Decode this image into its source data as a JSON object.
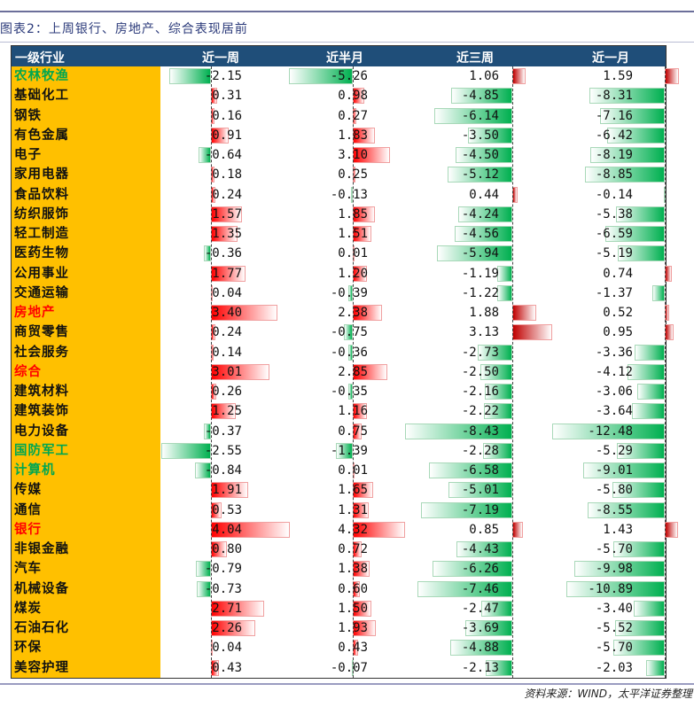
{
  "title": "图表2：上周银行、房地产、综合表现居前",
  "source": "资料来源：WIND，太平洋证券整理",
  "colors": {
    "header_bg": "#1f4e79",
    "name_bg": "#ffc000",
    "positive": "#ff0000",
    "positive_dark": "#c00000",
    "negative": "#00b050",
    "name_green": "#00a650",
    "name_red": "#ff0000"
  },
  "chart_data": {
    "type": "table",
    "columns": [
      "一级行业",
      "近一周",
      "近半月",
      "近三周",
      "近一月"
    ],
    "rows": [
      {
        "name": "农林牧渔",
        "color": "green",
        "values": [
          -2.15,
          -5.26,
          1.06,
          1.59
        ]
      },
      {
        "name": "基础化工",
        "color": "black",
        "values": [
          0.31,
          0.98,
          -4.85,
          -8.31
        ]
      },
      {
        "name": "钢铁",
        "color": "black",
        "values": [
          0.16,
          0.27,
          -6.14,
          -7.16
        ]
      },
      {
        "name": "有色金属",
        "color": "black",
        "values": [
          0.91,
          1.83,
          -3.5,
          -6.42
        ]
      },
      {
        "name": "电子",
        "color": "black",
        "values": [
          -0.64,
          3.1,
          -4.5,
          -8.19
        ]
      },
      {
        "name": "家用电器",
        "color": "black",
        "values": [
          0.18,
          0.25,
          -5.12,
          -8.85
        ]
      },
      {
        "name": "食品饮料",
        "color": "black",
        "values": [
          0.24,
          -0.13,
          0.44,
          -0.14
        ]
      },
      {
        "name": "纺织服饰",
        "color": "black",
        "values": [
          1.57,
          1.85,
          -4.24,
          -5.38
        ]
      },
      {
        "name": "轻工制造",
        "color": "black",
        "values": [
          1.35,
          1.51,
          -4.56,
          -6.59
        ]
      },
      {
        "name": "医药生物",
        "color": "black",
        "values": [
          -0.36,
          0.01,
          -5.94,
          -5.19
        ]
      },
      {
        "name": "公用事业",
        "color": "black",
        "values": [
          1.77,
          1.2,
          -1.19,
          0.74
        ]
      },
      {
        "name": "交通运输",
        "color": "black",
        "values": [
          0.04,
          -0.39,
          -1.22,
          -1.37
        ]
      },
      {
        "name": "房地产",
        "color": "red",
        "values": [
          3.4,
          2.38,
          1.88,
          0.52
        ]
      },
      {
        "name": "商贸零售",
        "color": "black",
        "values": [
          0.24,
          -0.75,
          3.13,
          0.95
        ]
      },
      {
        "name": "社会服务",
        "color": "black",
        "values": [
          0.14,
          -0.36,
          -2.73,
          -3.36
        ]
      },
      {
        "name": "综合",
        "color": "red",
        "values": [
          3.01,
          2.85,
          -2.5,
          -4.12
        ]
      },
      {
        "name": "建筑材料",
        "color": "black",
        "values": [
          0.26,
          -0.35,
          -2.16,
          -3.06
        ]
      },
      {
        "name": "建筑装饰",
        "color": "black",
        "values": [
          1.25,
          1.16,
          -2.22,
          -3.64
        ]
      },
      {
        "name": "电力设备",
        "color": "black",
        "values": [
          -0.37,
          0.75,
          -8.43,
          -12.48
        ]
      },
      {
        "name": "国防军工",
        "color": "green",
        "values": [
          -2.55,
          -1.39,
          -2.28,
          -5.29
        ]
      },
      {
        "name": "计算机",
        "color": "green",
        "values": [
          -0.84,
          0.01,
          -6.58,
          -9.01
        ]
      },
      {
        "name": "传媒",
        "color": "black",
        "values": [
          1.91,
          1.65,
          -5.01,
          -5.8
        ]
      },
      {
        "name": "通信",
        "color": "black",
        "values": [
          0.53,
          1.31,
          -7.19,
          -8.55
        ]
      },
      {
        "name": "银行",
        "color": "red",
        "values": [
          4.04,
          4.32,
          0.85,
          1.43
        ]
      },
      {
        "name": "非银金融",
        "color": "black",
        "values": [
          0.8,
          0.72,
          -4.43,
          -5.7
        ]
      },
      {
        "name": "汽车",
        "color": "black",
        "values": [
          -0.79,
          1.38,
          -6.26,
          -9.98
        ]
      },
      {
        "name": "机械设备",
        "color": "black",
        "values": [
          -0.73,
          0.6,
          -7.46,
          -10.89
        ]
      },
      {
        "name": "煤炭",
        "color": "black",
        "values": [
          2.71,
          1.5,
          -2.47,
          -3.4
        ]
      },
      {
        "name": "石油石化",
        "color": "black",
        "values": [
          2.26,
          1.93,
          -3.69,
          -5.52
        ]
      },
      {
        "name": "环保",
        "color": "black",
        "values": [
          0.04,
          0.43,
          -4.88,
          -5.7
        ]
      },
      {
        "name": "美容护理",
        "color": "black",
        "values": [
          0.43,
          -0.07,
          -2.13,
          -2.03
        ]
      }
    ]
  }
}
